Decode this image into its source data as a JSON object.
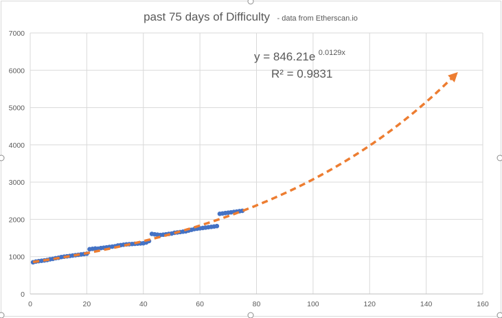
{
  "chart_data": {
    "type": "scatter",
    "title": "past 75 days of Difficulty",
    "subtitle": "- data from Etherscan.io",
    "xlim": [
      0,
      160
    ],
    "ylim": [
      0,
      7000
    ],
    "x_ticks": [
      "0",
      "20",
      "40",
      "60",
      "80",
      "100",
      "120",
      "140",
      "160"
    ],
    "y_ticks": [
      "0",
      "1000",
      "2000",
      "3000",
      "4000",
      "5000",
      "6000",
      "7000"
    ],
    "grid": true,
    "legend": "none",
    "series": [
      {
        "kind": "markers",
        "color": "#4472C4",
        "x": [
          1,
          2,
          3,
          4,
          5,
          6,
          7,
          8,
          9,
          10,
          11,
          12,
          13,
          14,
          15,
          16,
          17,
          18,
          19,
          20,
          21,
          22,
          23,
          24,
          25,
          26,
          27,
          28,
          29,
          30,
          31,
          32,
          33,
          34,
          35,
          36,
          37,
          38,
          39,
          40,
          41,
          42,
          43,
          44,
          45,
          46,
          47,
          48,
          49,
          50,
          51,
          52,
          53,
          54,
          55,
          56,
          57,
          58,
          59,
          60,
          61,
          62,
          63,
          64,
          65,
          66,
          67,
          68,
          69,
          70,
          71,
          72,
          73,
          74,
          75
        ],
        "y": [
          850,
          870,
          880,
          890,
          900,
          910,
          930,
          940,
          960,
          970,
          990,
          1000,
          1010,
          1020,
          1030,
          1040,
          1050,
          1060,
          1070,
          1080,
          1200,
          1210,
          1220,
          1215,
          1230,
          1240,
          1250,
          1260,
          1270,
          1280,
          1300,
          1310,
          1320,
          1330,
          1335,
          1340,
          1345,
          1350,
          1355,
          1360,
          1380,
          1420,
          1610,
          1600,
          1590,
          1580,
          1590,
          1600,
          1610,
          1620,
          1640,
          1650,
          1660,
          1670,
          1680,
          1700,
          1720,
          1740,
          1750,
          1760,
          1770,
          1780,
          1790,
          1800,
          1810,
          1820,
          2150,
          2160,
          2170,
          2180,
          2190,
          2200,
          2210,
          2220,
          2230
        ]
      },
      {
        "kind": "trendline-exponential",
        "color": "#ED7D31",
        "x_range": [
          1,
          150
        ],
        "a": 846.21,
        "b": 0.0129
      }
    ],
    "annotations": {
      "equation_base": "y = 846.21e",
      "equation_exp": "0.0129x",
      "r2": "R² = 0.9831"
    }
  }
}
